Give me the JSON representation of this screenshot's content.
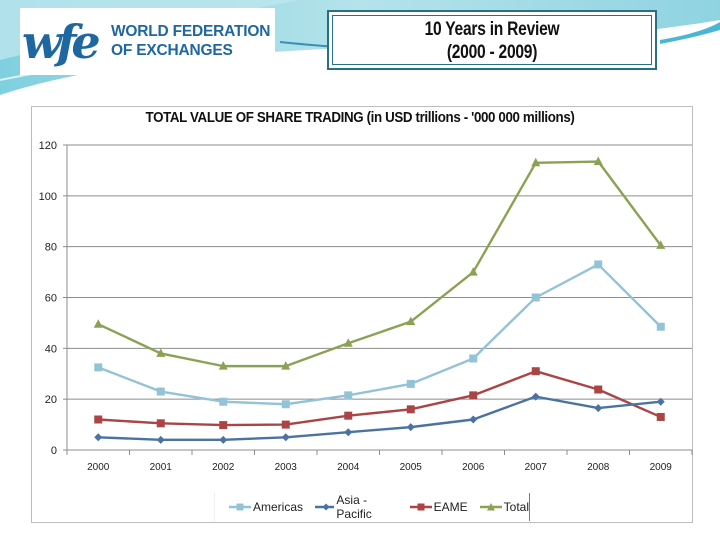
{
  "header": {
    "logo_mark": "wfe",
    "logo_line1": "WORLD FEDERATION",
    "logo_line2": "OF EXCHANGES",
    "review_title_line1": "10 Years in Review",
    "review_title_line2": "(2000 - 2009)"
  },
  "colors": {
    "brand_blue": "#1f67a0",
    "box_border": "#2b6f87",
    "swoosh_light": "#a9dde6",
    "swoosh_mid": "#6cc3d8"
  },
  "chart_data": {
    "type": "line",
    "title": "TOTAL VALUE OF SHARE TRADING (in USD trillions  -  '000 000 millions)",
    "xlabel": "",
    "ylabel": "",
    "categories": [
      "2000",
      "2001",
      "2002",
      "2003",
      "2004",
      "2005",
      "2006",
      "2007",
      "2008",
      "2009"
    ],
    "ylim": [
      0,
      120
    ],
    "yticks": [
      0,
      20,
      40,
      60,
      80,
      100,
      120
    ],
    "grid": true,
    "legend_position": "bottom",
    "series": [
      {
        "name": "Americas",
        "color": "#93c3d6",
        "marker": "square",
        "values": [
          32.5,
          23,
          19,
          18,
          21.5,
          26,
          36,
          60,
          73,
          48.5
        ]
      },
      {
        "name": "Asia - Pacific",
        "color": "#4a73a0",
        "marker": "diamond",
        "values": [
          5,
          4,
          4,
          5,
          7,
          9,
          12,
          21,
          16.5,
          19
        ]
      },
      {
        "name": "EAME",
        "color": "#ab4545",
        "marker": "square",
        "values": [
          12,
          10.5,
          9.8,
          10,
          13.5,
          16,
          21.5,
          31,
          23.8,
          13
        ]
      },
      {
        "name": "Total",
        "color": "#8ba254",
        "marker": "triangle",
        "values": [
          49.5,
          38,
          33,
          33,
          42,
          50.5,
          70,
          113,
          113.5,
          80.5
        ]
      }
    ]
  }
}
